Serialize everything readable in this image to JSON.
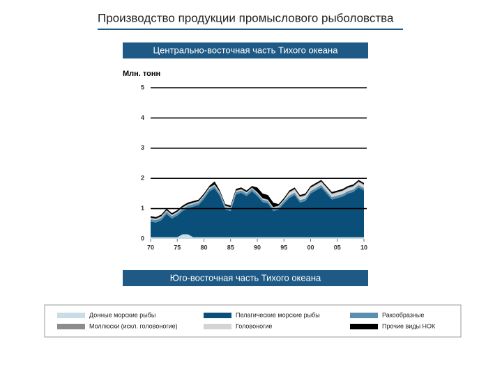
{
  "title": "Производство продукции промыслового рыболовства",
  "next_section_title": "Юго-восточная часть Тихого океана",
  "chart_data": {
    "type": "stacked_area",
    "title": "Центрально-восточная часть Тихого океана",
    "y_label": "Млн. тонн",
    "x": [
      1970,
      1971,
      1972,
      1973,
      1974,
      1975,
      1976,
      1977,
      1978,
      1979,
      1980,
      1981,
      1982,
      1983,
      1984,
      1985,
      1986,
      1987,
      1988,
      1989,
      1990,
      1991,
      1992,
      1993,
      1994,
      1995,
      1996,
      1997,
      1998,
      1999,
      2000,
      2001,
      2002,
      2003,
      2004,
      2005,
      2006,
      2007,
      2008,
      2009,
      2010
    ],
    "xlim": [
      1970,
      2010
    ],
    "xticks": [
      {
        "value": 1970,
        "label": "70"
      },
      {
        "value": 1975,
        "label": "75"
      },
      {
        "value": 1980,
        "label": "80"
      },
      {
        "value": 1985,
        "label": "85"
      },
      {
        "value": 1990,
        "label": "90"
      },
      {
        "value": 1995,
        "label": "95"
      },
      {
        "value": 2000,
        "label": "00"
      },
      {
        "value": 2005,
        "label": "05"
      },
      {
        "value": 2010,
        "label": "10"
      }
    ],
    "ylim": [
      0,
      5
    ],
    "yticks": [
      0,
      1,
      2,
      3,
      4,
      5
    ],
    "grid": true,
    "series": [
      {
        "name": "Донные морские рыбы",
        "color": "#c9dde6",
        "values": [
          0.05,
          0.05,
          0.05,
          0.05,
          0.05,
          0.05,
          0.15,
          0.15,
          0.05,
          0.05,
          0.05,
          0.05,
          0.05,
          0.05,
          0.05,
          0.05,
          0.05,
          0.05,
          0.05,
          0.05,
          0.05,
          0.05,
          0.05,
          0.05,
          0.05,
          0.05,
          0.05,
          0.05,
          0.05,
          0.05,
          0.05,
          0.05,
          0.05,
          0.05,
          0.05,
          0.05,
          0.05,
          0.05,
          0.05,
          0.05,
          0.05
        ]
      },
      {
        "name": "Пелагические морские рыбы",
        "color": "#0a4f7a",
        "values": [
          0.52,
          0.49,
          0.57,
          0.77,
          0.62,
          0.72,
          0.77,
          0.87,
          1.02,
          1.07,
          1.27,
          1.52,
          1.62,
          1.37,
          0.92,
          0.87,
          1.42,
          1.47,
          1.37,
          1.52,
          1.37,
          1.17,
          1.12,
          0.87,
          0.92,
          1.12,
          1.3,
          1.4,
          1.15,
          1.2,
          1.45,
          1.55,
          1.65,
          1.45,
          1.25,
          1.3,
          1.35,
          1.45,
          1.5,
          1.65,
          1.55
        ]
      },
      {
        "name": "Ракообразные",
        "color": "#5a8fae",
        "values": [
          0.08,
          0.08,
          0.08,
          0.08,
          0.08,
          0.08,
          0.08,
          0.08,
          0.08,
          0.08,
          0.08,
          0.08,
          0.08,
          0.08,
          0.08,
          0.08,
          0.08,
          0.08,
          0.08,
          0.08,
          0.08,
          0.08,
          0.08,
          0.08,
          0.08,
          0.08,
          0.08,
          0.08,
          0.08,
          0.08,
          0.08,
          0.08,
          0.08,
          0.08,
          0.08,
          0.08,
          0.08,
          0.08,
          0.08,
          0.08,
          0.08
        ]
      },
      {
        "name": "Головоногие",
        "color": "#d4d4d4",
        "values": [
          0.03,
          0.03,
          0.03,
          0.03,
          0.03,
          0.03,
          0.03,
          0.03,
          0.03,
          0.03,
          0.03,
          0.03,
          0.03,
          0.03,
          0.03,
          0.03,
          0.03,
          0.03,
          0.03,
          0.03,
          0.03,
          0.03,
          0.03,
          0.03,
          0.03,
          0.03,
          0.1,
          0.1,
          0.1,
          0.1,
          0.1,
          0.1,
          0.1,
          0.1,
          0.1,
          0.1,
          0.1,
          0.1,
          0.1,
          0.1,
          0.1
        ]
      },
      {
        "name": "Моллюски (искл. головоногие)",
        "color": "#8c8c8c",
        "values": [
          0.02,
          0.02,
          0.02,
          0.02,
          0.02,
          0.02,
          0.02,
          0.02,
          0.02,
          0.02,
          0.02,
          0.02,
          0.02,
          0.02,
          0.02,
          0.02,
          0.02,
          0.02,
          0.02,
          0.02,
          0.02,
          0.02,
          0.02,
          0.02,
          0.02,
          0.02,
          0.02,
          0.02,
          0.02,
          0.02,
          0.02,
          0.02,
          0.02,
          0.02,
          0.02,
          0.02,
          0.02,
          0.02,
          0.02,
          0.02,
          0.02
        ]
      },
      {
        "name": "Прочие виды НОК",
        "color": "#000000",
        "values": [
          0.05,
          0.05,
          0.05,
          0.05,
          0.05,
          0.05,
          0.05,
          0.05,
          0.05,
          0.05,
          0.05,
          0.05,
          0.1,
          0.05,
          0.05,
          0.05,
          0.05,
          0.05,
          0.05,
          0.05,
          0.15,
          0.15,
          0.15,
          0.15,
          0.05,
          0.05,
          0.05,
          0.05,
          0.05,
          0.05,
          0.05,
          0.05,
          0.05,
          0.05,
          0.05,
          0.05,
          0.05,
          0.05,
          0.05,
          0.05,
          0.05
        ]
      }
    ]
  }
}
